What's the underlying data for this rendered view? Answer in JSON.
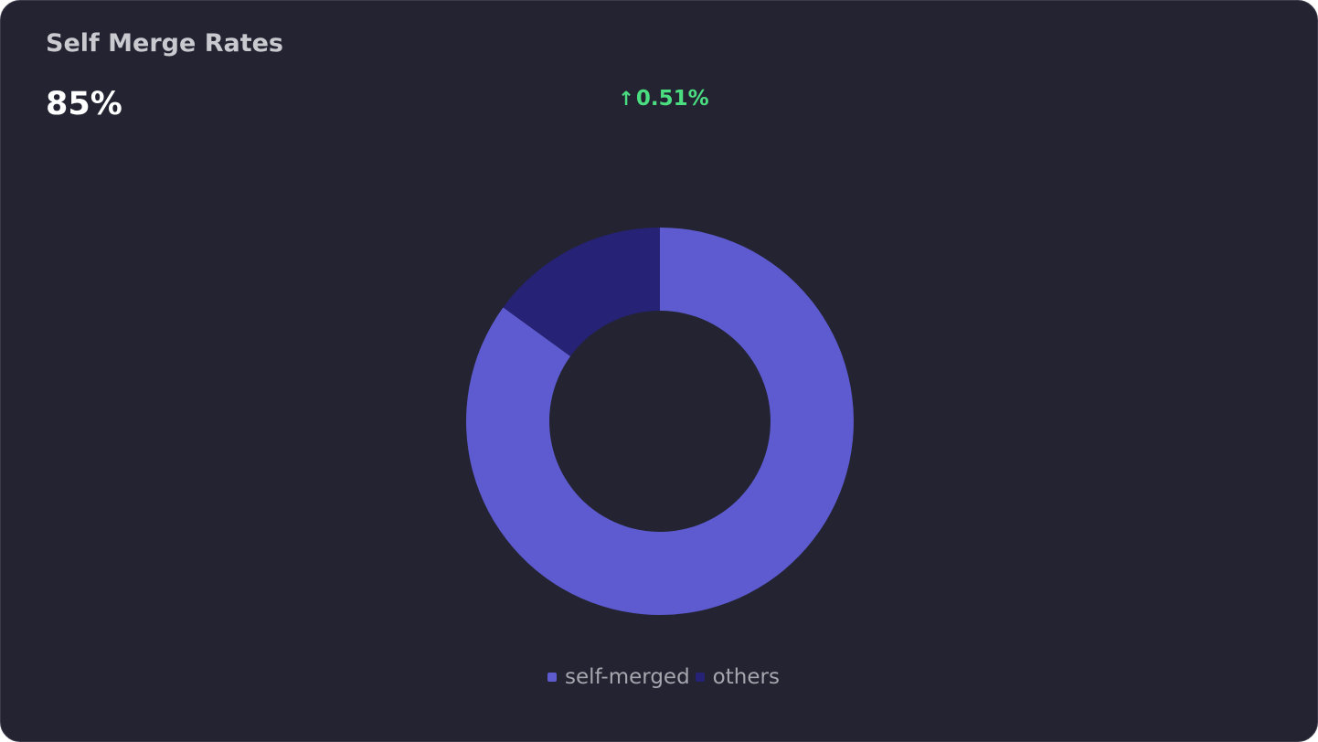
{
  "card": {
    "title": "Self Merge Rates",
    "value": "85%",
    "delta": {
      "arrow": "↑",
      "text": "0.51%",
      "direction": "up",
      "color": "#4ade80"
    }
  },
  "chart_data": {
    "type": "pie",
    "style": "donut",
    "categories": [
      "self-merged",
      "others"
    ],
    "values": [
      85,
      15
    ],
    "unit": "%",
    "colors": [
      "#5d5bcf",
      "#262275"
    ],
    "legend_position": "bottom-center"
  }
}
